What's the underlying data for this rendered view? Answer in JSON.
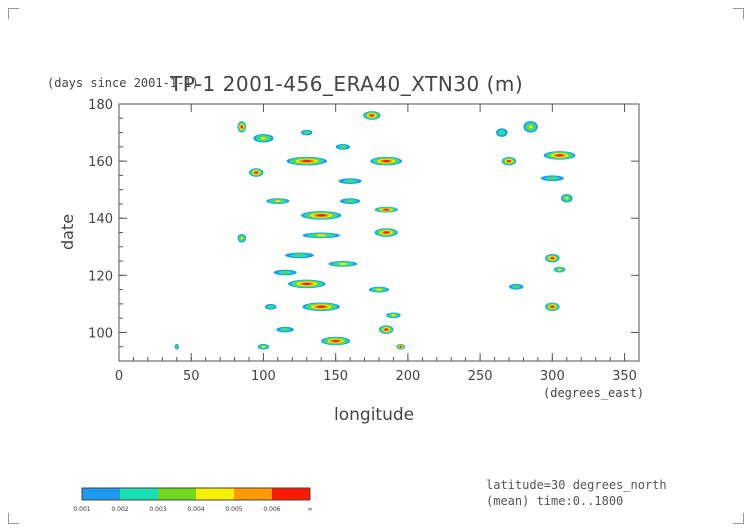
{
  "chart_data": {
    "type": "heatmap",
    "title": "TP-1 2001-456_ERA40_XTN30 (m)",
    "units_note": "(days since 2001-1-1)",
    "xlabel": "longitude",
    "xunit": "(degrees_east)",
    "ylabel": "date",
    "xlim": [
      0,
      360
    ],
    "ylim": [
      90,
      180
    ],
    "x_ticks": [
      "0",
      "50",
      "100",
      "150",
      "200",
      "250",
      "300",
      "350"
    ],
    "y_ticks": [
      "100",
      "120",
      "140",
      "160",
      "180"
    ],
    "grid": false,
    "legend": "colorbar-bottom-left",
    "colorbar": {
      "levels": [
        "0.001",
        "0.002",
        "0.003",
        "0.004",
        "0.005",
        "0.006",
        "∞"
      ],
      "colors": [
        "#1e9bf0",
        "#19e0b4",
        "#6fd81e",
        "#f8f000",
        "#ff9a00",
        "#ff1a00"
      ]
    },
    "features": [
      {
        "x": 85,
        "y": 172,
        "w": 6,
        "h": 4,
        "v": 0.006
      },
      {
        "x": 100,
        "y": 168,
        "w": 14,
        "h": 3,
        "v": 0.004
      },
      {
        "x": 130,
        "y": 170,
        "w": 8,
        "h": 2,
        "v": 0.003
      },
      {
        "x": 175,
        "y": 176,
        "w": 12,
        "h": 3,
        "v": 0.006
      },
      {
        "x": 155,
        "y": 165,
        "w": 10,
        "h": 2,
        "v": 0.003
      },
      {
        "x": 130,
        "y": 160,
        "w": 28,
        "h": 3,
        "v": 0.006
      },
      {
        "x": 95,
        "y": 156,
        "w": 10,
        "h": 3,
        "v": 0.006
      },
      {
        "x": 185,
        "y": 160,
        "w": 22,
        "h": 3,
        "v": 0.006
      },
      {
        "x": 160,
        "y": 153,
        "w": 16,
        "h": 2,
        "v": 0.003
      },
      {
        "x": 110,
        "y": 146,
        "w": 16,
        "h": 2,
        "v": 0.004
      },
      {
        "x": 160,
        "y": 146,
        "w": 14,
        "h": 2,
        "v": 0.003
      },
      {
        "x": 140,
        "y": 141,
        "w": 28,
        "h": 3,
        "v": 0.006
      },
      {
        "x": 185,
        "y": 143,
        "w": 16,
        "h": 2,
        "v": 0.006
      },
      {
        "x": 185,
        "y": 135,
        "w": 16,
        "h": 3,
        "v": 0.006
      },
      {
        "x": 140,
        "y": 134,
        "w": 26,
        "h": 2,
        "v": 0.004
      },
      {
        "x": 85,
        "y": 133,
        "w": 6,
        "h": 3,
        "v": 0.004
      },
      {
        "x": 125,
        "y": 127,
        "w": 20,
        "h": 2,
        "v": 0.003
      },
      {
        "x": 155,
        "y": 124,
        "w": 20,
        "h": 2,
        "v": 0.004
      },
      {
        "x": 115,
        "y": 121,
        "w": 16,
        "h": 2,
        "v": 0.003
      },
      {
        "x": 130,
        "y": 117,
        "w": 26,
        "h": 3,
        "v": 0.006
      },
      {
        "x": 180,
        "y": 115,
        "w": 14,
        "h": 2,
        "v": 0.004
      },
      {
        "x": 140,
        "y": 109,
        "w": 26,
        "h": 3,
        "v": 0.006
      },
      {
        "x": 105,
        "y": 109,
        "w": 8,
        "h": 2,
        "v": 0.003
      },
      {
        "x": 190,
        "y": 106,
        "w": 10,
        "h": 2,
        "v": 0.004
      },
      {
        "x": 115,
        "y": 101,
        "w": 12,
        "h": 2,
        "v": 0.003
      },
      {
        "x": 150,
        "y": 97,
        "w": 20,
        "h": 3,
        "v": 0.006
      },
      {
        "x": 185,
        "y": 101,
        "w": 10,
        "h": 3,
        "v": 0.006
      },
      {
        "x": 100,
        "y": 95,
        "w": 8,
        "h": 2,
        "v": 0.004
      },
      {
        "x": 195,
        "y": 95,
        "w": 6,
        "h": 2,
        "v": 0.006
      },
      {
        "x": 265,
        "y": 170,
        "w": 8,
        "h": 3,
        "v": 0.003
      },
      {
        "x": 285,
        "y": 172,
        "w": 10,
        "h": 4,
        "v": 0.004
      },
      {
        "x": 270,
        "y": 160,
        "w": 10,
        "h": 3,
        "v": 0.006
      },
      {
        "x": 305,
        "y": 162,
        "w": 22,
        "h": 3,
        "v": 0.006
      },
      {
        "x": 300,
        "y": 154,
        "w": 16,
        "h": 2,
        "v": 0.003
      },
      {
        "x": 310,
        "y": 147,
        "w": 8,
        "h": 3,
        "v": 0.004
      },
      {
        "x": 300,
        "y": 126,
        "w": 10,
        "h": 3,
        "v": 0.006
      },
      {
        "x": 305,
        "y": 122,
        "w": 8,
        "h": 2,
        "v": 0.004
      },
      {
        "x": 300,
        "y": 109,
        "w": 10,
        "h": 3,
        "v": 0.006
      },
      {
        "x": 275,
        "y": 116,
        "w": 10,
        "h": 2,
        "v": 0.003
      },
      {
        "x": 40,
        "y": 95,
        "w": 3,
        "h": 2,
        "v": 0.003
      }
    ]
  },
  "footnotes": {
    "line1": "latitude=30 degrees_north",
    "line2": "(mean) time:0..1800"
  }
}
